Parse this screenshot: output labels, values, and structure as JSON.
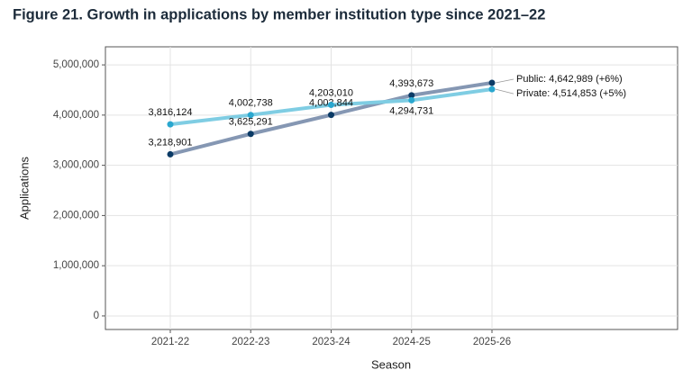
{
  "chart_data": {
    "type": "line",
    "title": "Figure 21. Growth in applications by member institution type since 2021–22",
    "x_label": "Season",
    "y_label": "Applications",
    "categories": [
      "2021-22",
      "2022-23",
      "2023-24",
      "2024-25",
      "2025-26"
    ],
    "ylim": [
      -270000,
      5360000
    ],
    "yticks": [
      {
        "value": 0,
        "label": "0"
      },
      {
        "value": 1000000,
        "label": "1,000,000"
      },
      {
        "value": 2000000,
        "label": "2,000,000"
      },
      {
        "value": 3000000,
        "label": "3,000,000"
      },
      {
        "value": 4000000,
        "label": "4,000,000"
      },
      {
        "value": 5000000,
        "label": "5,000,000"
      }
    ],
    "grid": true,
    "series": [
      {
        "name": "Public",
        "color": "#0b3b66",
        "line_color": "#8597b3",
        "values": [
          3218901,
          3625291,
          4003844,
          4393673,
          4642989
        ],
        "value_labels": [
          "3,218,901",
          "3,625,291",
          "4,003,844",
          "4,393,673",
          null
        ],
        "end_label": "Public: 4,642,989 (+6%)"
      },
      {
        "name": "Private",
        "color": "#2aa7cf",
        "line_color": "#7fcde3",
        "values": [
          3816124,
          4002738,
          4203010,
          4294731,
          4514853
        ],
        "value_labels": [
          "3,816,124",
          "4,002,738",
          "4,203,010",
          "4,294,731",
          null
        ],
        "end_label": "Private: 4,514,853 (+5%)"
      }
    ]
  }
}
